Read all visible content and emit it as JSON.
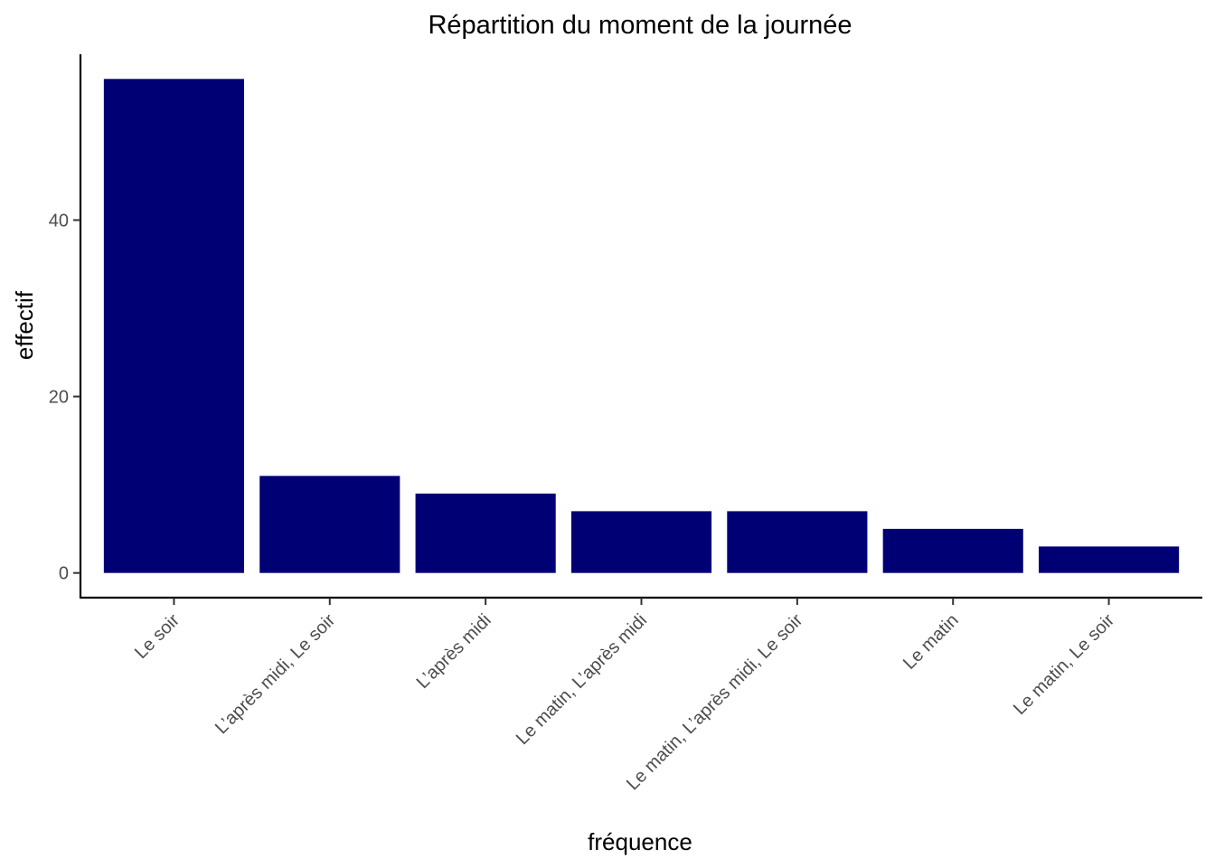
{
  "chart_data": {
    "type": "bar",
    "title": "Répartition du moment de la journée",
    "xlabel": "fréquence",
    "ylabel": "effectif",
    "categories": [
      "Le soir",
      "L’après midi, Le soir",
      "L’après midi",
      "Le matin, L’après midi",
      "Le matin, L’après midi, Le soir",
      "Le matin",
      "Le matin, Le soir"
    ],
    "values": [
      56,
      11,
      9,
      7,
      7,
      5,
      3
    ],
    "yticks": [
      0,
      20,
      40
    ],
    "ylim": [
      -2.8,
      58.8
    ],
    "grid": false,
    "legend": "none",
    "bar_color": "#000075"
  }
}
